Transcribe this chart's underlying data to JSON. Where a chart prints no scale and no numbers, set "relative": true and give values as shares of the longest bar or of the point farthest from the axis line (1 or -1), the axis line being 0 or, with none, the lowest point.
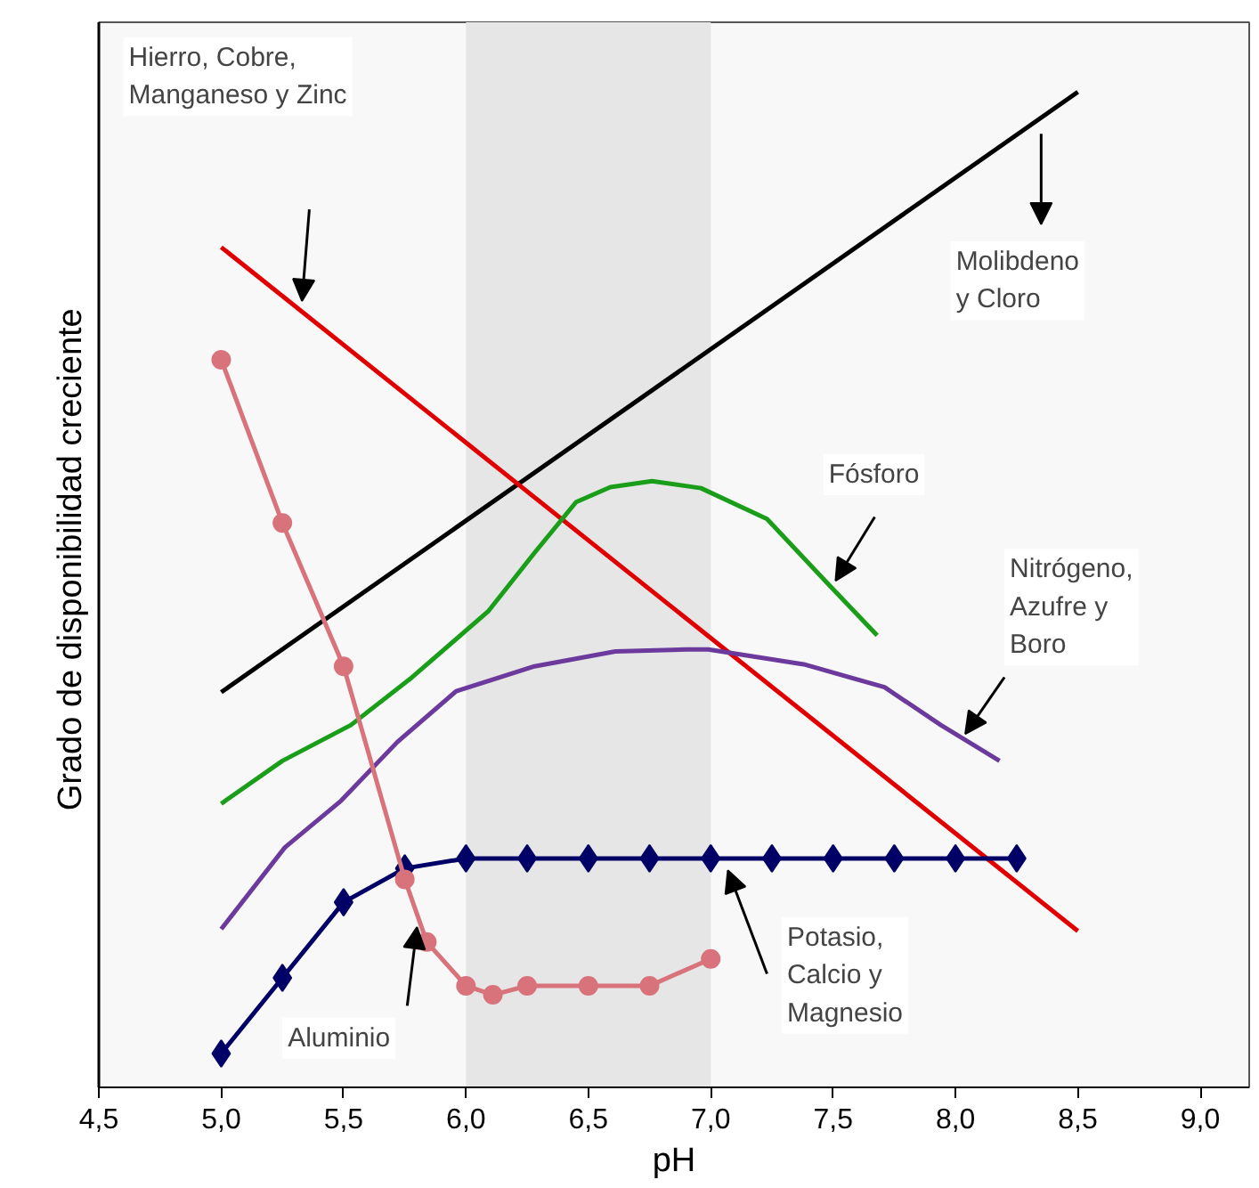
{
  "chart_data": {
    "type": "line",
    "relative": true,
    "xlabel": "pH",
    "ylabel": "Grado de disponibilidad  creciente",
    "xlim": [
      4.5,
      9.2
    ],
    "xticks": [
      {
        "value": 4.5,
        "label": "4,5"
      },
      {
        "value": 5.0,
        "label": "5,0"
      },
      {
        "value": 5.5,
        "label": "5,5"
      },
      {
        "value": 6.0,
        "label": "6,0"
      },
      {
        "value": 6.5,
        "label": "6,5"
      },
      {
        "value": 7.0,
        "label": "7,0"
      },
      {
        "value": 7.5,
        "label": "7,5"
      },
      {
        "value": 8.0,
        "label": "8,0"
      },
      {
        "value": 8.5,
        "label": "8,5"
      },
      {
        "value": 9.0,
        "label": "9,0"
      }
    ],
    "grid": false,
    "bands": [
      {
        "axis": "x",
        "from": 6.0,
        "to": 7.0,
        "color": "#e6e6e6"
      }
    ],
    "series": [
      {
        "color": "#000000",
        "marker": "none",
        "x": [
          5.0,
          8.5
        ],
        "values": [
          0.397,
          1.0
        ]
      },
      {
        "color": "#e00000",
        "marker": "none",
        "x": [
          5.0,
          8.5
        ],
        "values": [
          0.844,
          0.157
        ]
      },
      {
        "color": "#1a9e1a",
        "marker": "none",
        "x": [
          5.0,
          5.25,
          5.53,
          5.78,
          6.09,
          6.28,
          6.45,
          6.59,
          6.76,
          6.96,
          7.23,
          7.49,
          7.68
        ],
        "values": [
          0.285,
          0.328,
          0.364,
          0.412,
          0.478,
          0.537,
          0.588,
          0.603,
          0.609,
          0.602,
          0.571,
          0.503,
          0.454
        ]
      },
      {
        "color": "#6b3a9c",
        "marker": "none",
        "x": [
          5.0,
          5.26,
          5.49,
          5.72,
          5.96,
          6.28,
          6.61,
          6.9,
          6.99,
          7.38,
          7.71,
          7.94,
          8.18
        ],
        "values": [
          0.159,
          0.241,
          0.288,
          0.347,
          0.398,
          0.423,
          0.438,
          0.44,
          0.44,
          0.425,
          0.402,
          0.364,
          0.328
        ]
      },
      {
        "color": "#000066",
        "marker": "diamond",
        "x": [
          5.0,
          5.25,
          5.5,
          5.75,
          6.0,
          6.25,
          6.5,
          6.75,
          7.0,
          7.25,
          7.5,
          7.75,
          8.0,
          8.25
        ],
        "values": [
          0.034,
          0.11,
          0.186,
          0.22,
          0.23,
          0.23,
          0.23,
          0.23,
          0.23,
          0.23,
          0.23,
          0.23,
          0.23,
          0.23
        ]
      },
      {
        "color": "#d9737b",
        "marker": "circle",
        "x": [
          5.0,
          5.25,
          5.5,
          5.75,
          5.84,
          6.0,
          6.11,
          6.25,
          6.5,
          6.75,
          7.0
        ],
        "values": [
          0.731,
          0.567,
          0.423,
          0.209,
          0.146,
          0.102,
          0.093,
          0.102,
          0.102,
          0.102,
          0.129
        ]
      }
    ],
    "annotations": [
      "Hierro, Cobre,\nManganeso y Zinc",
      "Molibdeno\ny Cloro",
      "Fósforo",
      "Nitrógeno,\nAzufre y\nBoro",
      "Potasio,\nCalcio y\nMagnesio",
      "Aluminio"
    ]
  }
}
